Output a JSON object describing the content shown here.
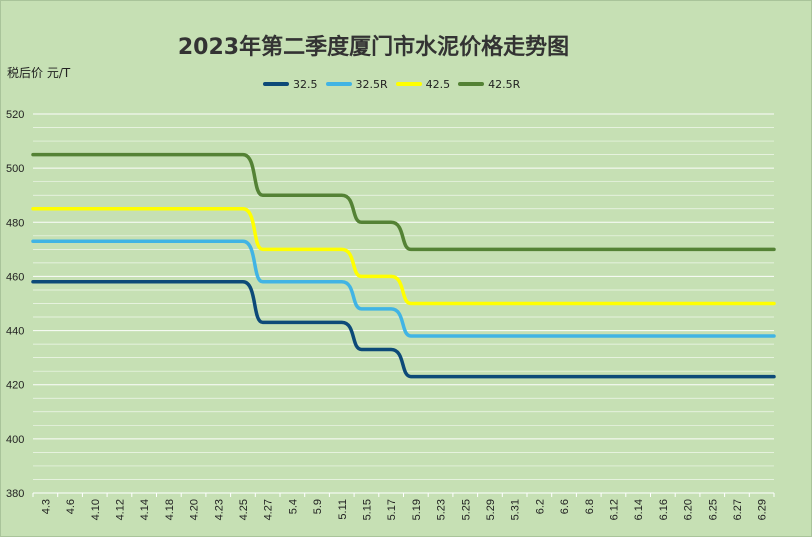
{
  "chart_data": {
    "type": "line",
    "title": "2023年第二季度厦门市水泥价格走势图",
    "ylabel": "税后价 元/T",
    "xlabel": "",
    "ylim": [
      380,
      520
    ],
    "yticks": [
      380,
      400,
      420,
      440,
      460,
      480,
      500,
      520
    ],
    "grid": true,
    "legend_position": "top",
    "categories": [
      "4.3",
      "4.6",
      "4.10",
      "4.12",
      "4.14",
      "4.18",
      "4.20",
      "4.23",
      "4.25",
      "4.27",
      "5.4",
      "5.9",
      "5.11",
      "5.15",
      "5.17",
      "5.19",
      "5.23",
      "5.25",
      "5.29",
      "5.31",
      "6.2",
      "6.6",
      "6.8",
      "6.12",
      "6.14",
      "6.16",
      "6.20",
      "6.25",
      "6.27",
      "6.29"
    ],
    "series": [
      {
        "name": "32.5",
        "color": "#0d4a78",
        "values": [
          458,
          458,
          458,
          458,
          458,
          458,
          458,
          458,
          458,
          443,
          443,
          443,
          443,
          433,
          433,
          423,
          423,
          423,
          423,
          423,
          423,
          423,
          423,
          423,
          423,
          423,
          423,
          423,
          423,
          423
        ]
      },
      {
        "name": "32.5R",
        "color": "#41b4e4",
        "values": [
          473,
          473,
          473,
          473,
          473,
          473,
          473,
          473,
          473,
          458,
          458,
          458,
          458,
          448,
          448,
          438,
          438,
          438,
          438,
          438,
          438,
          438,
          438,
          438,
          438,
          438,
          438,
          438,
          438,
          438
        ]
      },
      {
        "name": "42.5",
        "color": "#ffff00",
        "values": [
          485,
          485,
          485,
          485,
          485,
          485,
          485,
          485,
          485,
          470,
          470,
          470,
          470,
          460,
          460,
          450,
          450,
          450,
          450,
          450,
          450,
          450,
          450,
          450,
          450,
          450,
          450,
          450,
          450,
          450
        ]
      },
      {
        "name": "42.5R",
        "color": "#548235",
        "values": [
          505,
          505,
          505,
          505,
          505,
          505,
          505,
          505,
          505,
          490,
          490,
          490,
          490,
          480,
          480,
          470,
          470,
          470,
          470,
          470,
          470,
          470,
          470,
          470,
          470,
          470,
          470,
          470,
          470,
          470
        ]
      }
    ]
  }
}
